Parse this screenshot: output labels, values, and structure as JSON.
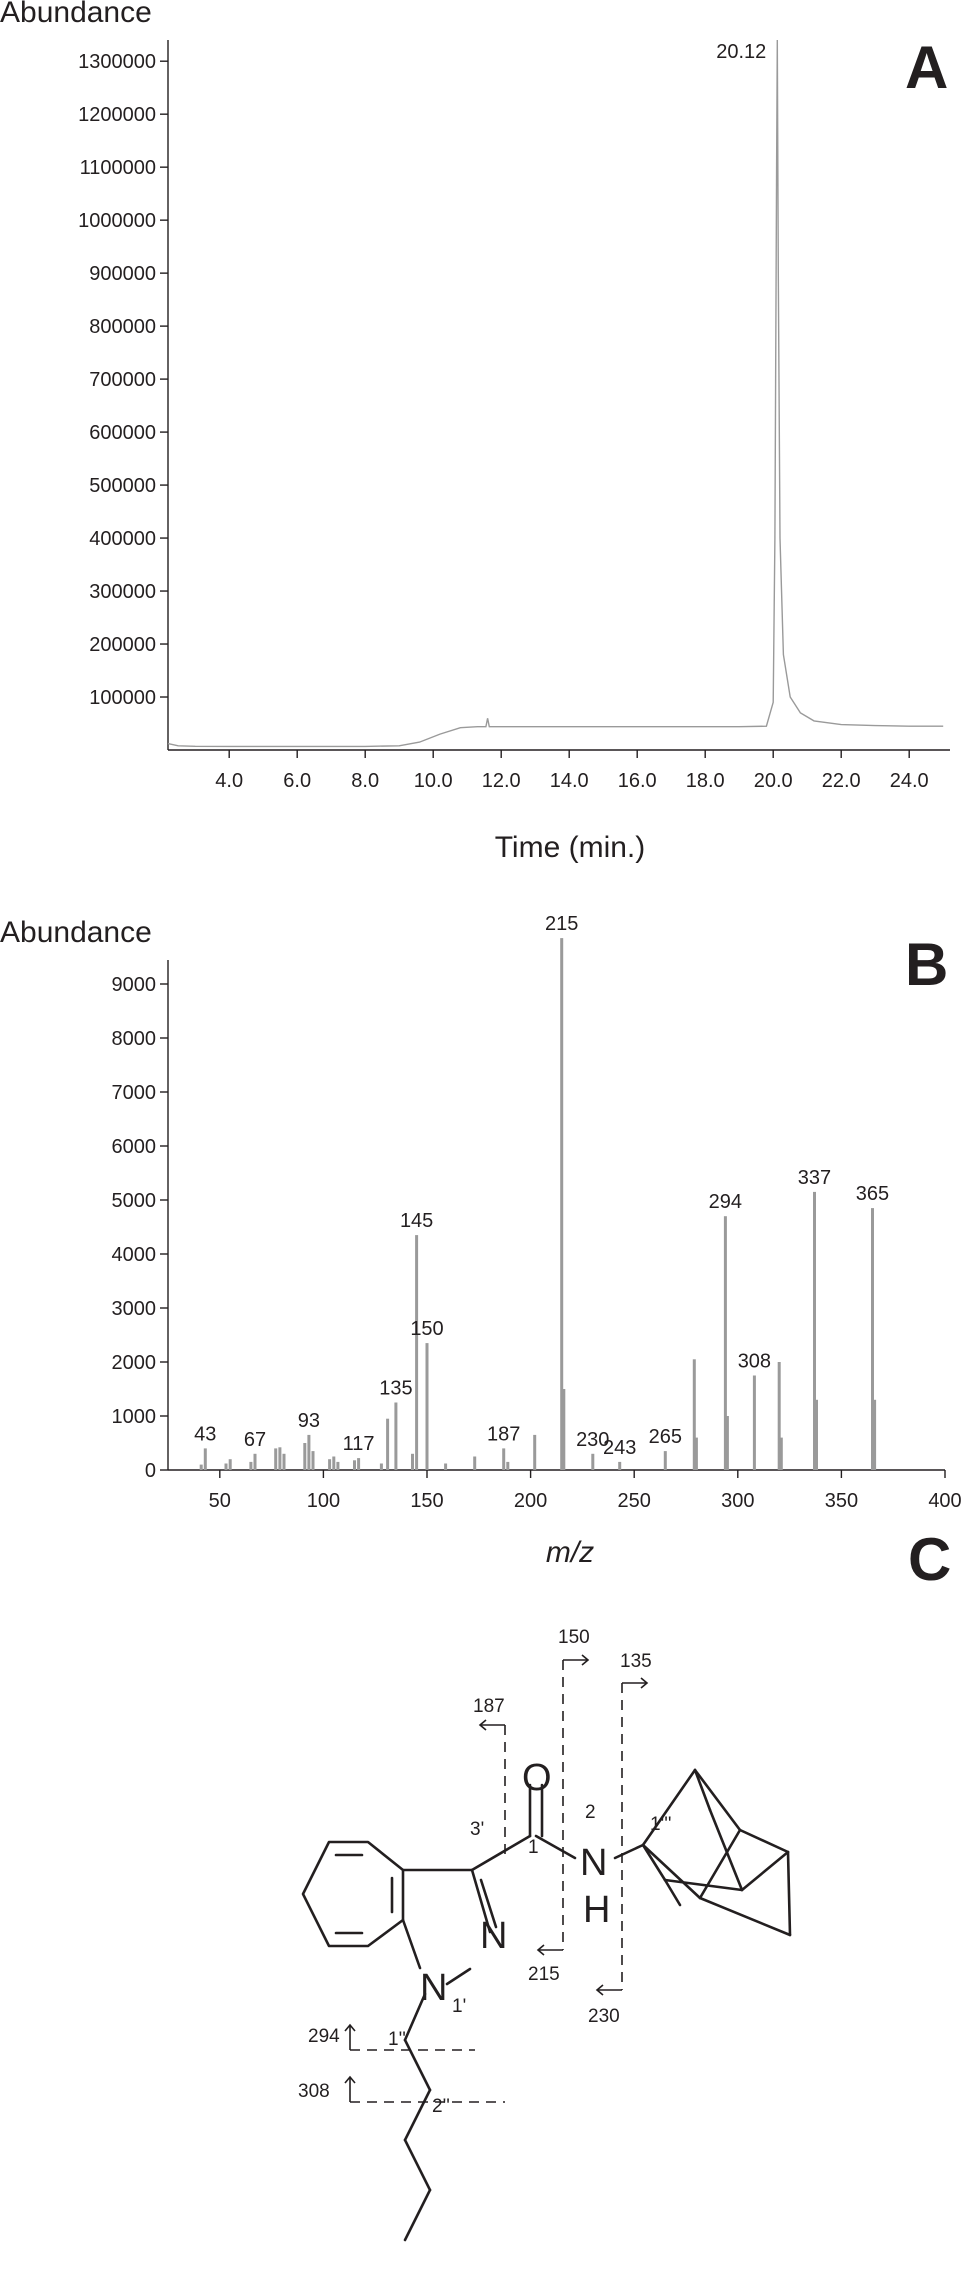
{
  "chart_data": [
    {
      "panel_label": "A",
      "type": "line",
      "ylabel": "Abundance",
      "xlabel": "Time (min.)",
      "xlim": [
        2.2,
        25.2
      ],
      "ylim": [
        0,
        1340000
      ],
      "x_ticks": [
        "4.0",
        "6.0",
        "8.0",
        "10.0",
        "12.0",
        "14.0",
        "16.0",
        "18.0",
        "20.0",
        "22.0",
        "24.0"
      ],
      "y_ticks": [
        "100000",
        "200000",
        "300000",
        "400000",
        "500000",
        "600000",
        "700000",
        "800000",
        "900000",
        "1000000",
        "1100000",
        "1200000",
        "1300000"
      ],
      "peak_label": "20.12",
      "series": [
        {
          "x": [
            2.2,
            2.5,
            3.0,
            4.0,
            5.0,
            6.0,
            7.0,
            8.0,
            9.0,
            9.6,
            10.2,
            10.8,
            11.3,
            11.55,
            11.6,
            11.65,
            11.7,
            12.0,
            13.0,
            14.0,
            15.0,
            16.0,
            17.0,
            18.0,
            19.0,
            19.8,
            20.0,
            20.05,
            20.1,
            20.12,
            20.15,
            20.2,
            20.3,
            20.5,
            20.8,
            21.2,
            22.0,
            23.0,
            24.0,
            25.0
          ],
          "y": [
            12000,
            8000,
            7000,
            6800,
            6800,
            6800,
            6800,
            6800,
            8000,
            15000,
            30000,
            42000,
            44000,
            44000,
            60000,
            44000,
            44000,
            44000,
            44000,
            44000,
            44000,
            44000,
            44000,
            44000,
            44000,
            45000,
            90000,
            400000,
            1100000,
            1340000,
            900000,
            400000,
            180000,
            100000,
            70000,
            55000,
            48000,
            46000,
            45000,
            45000
          ]
        }
      ]
    },
    {
      "panel_label": "B",
      "type": "bar",
      "ylabel": "Abundance",
      "xlabel": "m/z",
      "xlim": [
        25,
        400
      ],
      "ylim": [
        0,
        10000
      ],
      "x_ticks": [
        "50",
        "100",
        "150",
        "200",
        "250",
        "300",
        "350",
        "400"
      ],
      "y_ticks": [
        "0",
        "1000",
        "2000",
        "3000",
        "4000",
        "5000",
        "6000",
        "7000",
        "8000",
        "9000"
      ],
      "x": [
        41,
        43,
        53,
        55,
        65,
        67,
        77,
        79,
        81,
        91,
        93,
        95,
        103,
        105,
        107,
        115,
        117,
        128,
        131,
        135,
        143,
        145,
        150,
        159,
        173,
        187,
        189,
        202,
        215,
        216,
        230,
        243,
        265,
        279,
        280,
        294,
        295,
        308,
        320,
        321,
        337,
        338,
        365,
        366
      ],
      "values": [
        100,
        400,
        120,
        200,
        150,
        300,
        400,
        420,
        300,
        500,
        650,
        350,
        200,
        250,
        150,
        180,
        220,
        120,
        950,
        1250,
        300,
        4350,
        2350,
        120,
        250,
        400,
        150,
        650,
        9850,
        1500,
        300,
        150,
        350,
        2050,
        600,
        4700,
        1000,
        1750,
        2000,
        600,
        5150,
        1300,
        4850,
        1300
      ],
      "peak_labels": [
        {
          "x": 43,
          "text": "43"
        },
        {
          "x": 67,
          "text": "67"
        },
        {
          "x": 93,
          "text": "93"
        },
        {
          "x": 117,
          "text": "117"
        },
        {
          "x": 135,
          "text": "135"
        },
        {
          "x": 145,
          "text": "145"
        },
        {
          "x": 150,
          "text": "150"
        },
        {
          "x": 187,
          "text": "187"
        },
        {
          "x": 215,
          "text": "215"
        },
        {
          "x": 230,
          "text": "230"
        },
        {
          "x": 243,
          "text": "243"
        },
        {
          "x": 265,
          "text": "265"
        },
        {
          "x": 294,
          "text": "294"
        },
        {
          "x": 308,
          "text": "308"
        },
        {
          "x": 337,
          "text": "337"
        },
        {
          "x": 365,
          "text": "365"
        }
      ]
    }
  ],
  "panel_c": {
    "panel_label": "C",
    "atoms": {
      "O": "O",
      "N": "N",
      "H": "H",
      "N1": "N",
      "N2": "N"
    },
    "positions": [
      "1",
      "2",
      "3'",
      "1'",
      "1''",
      "2''",
      "1'''"
    ],
    "fragments": [
      "187",
      "150",
      "135",
      "215",
      "230",
      "294",
      "308"
    ]
  },
  "colors": {
    "ink": "#231f20",
    "trace": "#9a9a9a",
    "bars": "#9a9a9a"
  }
}
